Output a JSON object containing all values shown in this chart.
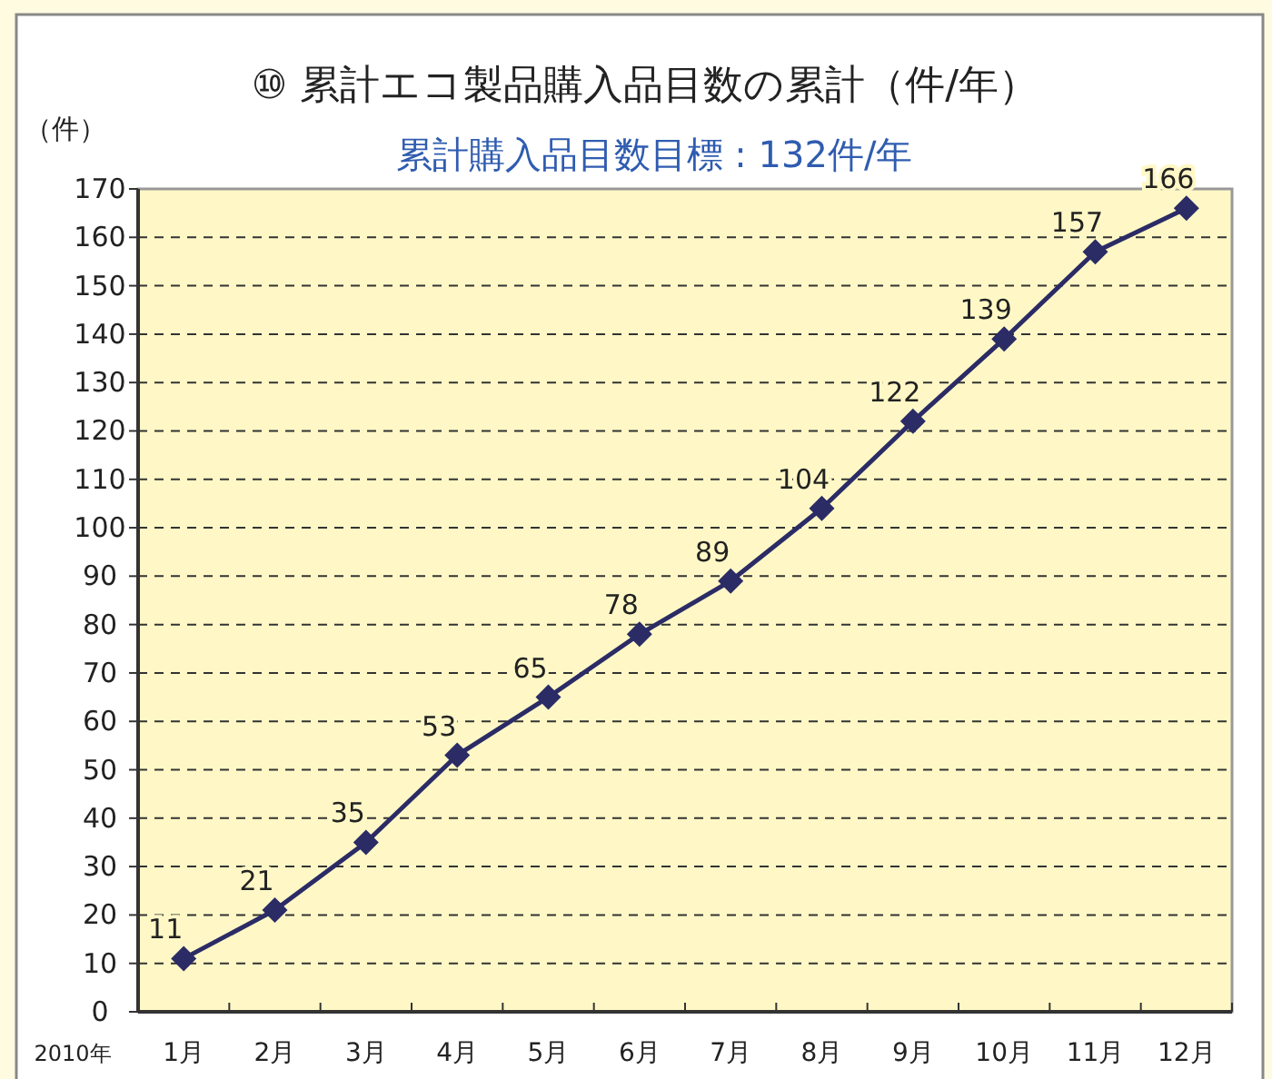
{
  "chart_data": {
    "type": "line",
    "title": "⑩ 累計エコ製品購入品目数の累計（件/年）",
    "subtitle": "累計購入品目数目標 : 132件/年",
    "ylabel": "（件）",
    "annotations": [
      "2010年"
    ],
    "categories": [
      "1月",
      "2月",
      "3月",
      "4月",
      "5月",
      "6月",
      "7月",
      "8月",
      "9月",
      "10月",
      "11月",
      "12月"
    ],
    "values": [
      11,
      21,
      35,
      53,
      65,
      78,
      89,
      104,
      122,
      139,
      157,
      166
    ],
    "color": "#2b2b66",
    "marker": "diamond",
    "data_labels": true,
    "grid": "y",
    "ylim": [
      0,
      170
    ],
    "yticks": [
      0,
      10,
      20,
      30,
      40,
      50,
      60,
      70,
      80,
      90,
      100,
      110,
      120,
      130,
      140,
      150,
      160,
      170
    ]
  }
}
